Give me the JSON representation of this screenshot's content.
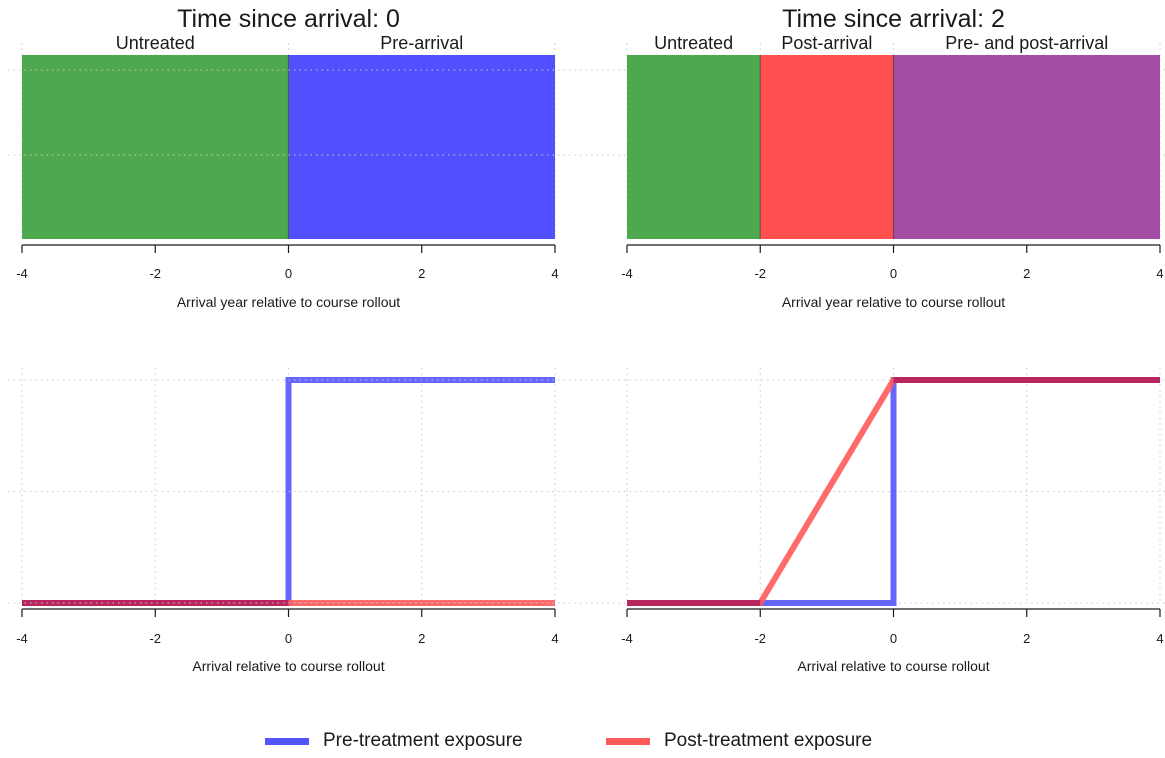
{
  "chart_data": [
    {
      "type": "area",
      "title": "Time since arrival: 0",
      "xlabel": "Arrival year relative to course rollout",
      "xlim": [
        -4,
        4
      ],
      "xticks": [
        "-4",
        "-2",
        "0",
        "2",
        "4"
      ],
      "grid": "dotted",
      "regions": [
        {
          "label": "Untreated",
          "from": -4,
          "to": 0,
          "color": "#4ea84e"
        },
        {
          "label": "Pre-arrival",
          "from": 0,
          "to": 4,
          "color": "#5050ff"
        }
      ]
    },
    {
      "type": "area",
      "title": "Time since arrival: 2",
      "xlabel": "Arrival year relative to course rollout",
      "xlim": [
        -4,
        4
      ],
      "xticks": [
        "-4",
        "-2",
        "0",
        "2",
        "4"
      ],
      "grid": "dotted",
      "regions": [
        {
          "label": "Untreated",
          "from": -4,
          "to": -2,
          "color": "#4ea84e"
        },
        {
          "label": "Post-arrival",
          "from": -2,
          "to": 0,
          "color": "#ff4f4f"
        },
        {
          "label": "Pre- and post-arrival",
          "from": 0,
          "to": 4,
          "color": "#a24ea4"
        }
      ]
    },
    {
      "type": "line",
      "xlabel": "Arrival relative to course rollout",
      "xlim": [
        -4,
        4
      ],
      "ylim": [
        0,
        1
      ],
      "xticks": [
        "-4",
        "-2",
        "0",
        "2",
        "4"
      ],
      "grid": "dotted",
      "series": [
        {
          "name": "Pre-treatment exposure",
          "color": "#5555ff",
          "x": [
            -4,
            0,
            0,
            4
          ],
          "y": [
            0,
            0,
            1,
            1
          ]
        },
        {
          "name": "Post-treatment exposure",
          "color": "#ff5a5a",
          "x": [
            -4,
            4
          ],
          "y": [
            0,
            0
          ]
        }
      ]
    },
    {
      "type": "line",
      "xlabel": "Arrival relative to course rollout",
      "xlim": [
        -4,
        4
      ],
      "ylim": [
        0,
        1
      ],
      "xticks": [
        "-4",
        "-2",
        "0",
        "2",
        "4"
      ],
      "grid": "dotted",
      "series": [
        {
          "name": "Pre-treatment exposure",
          "color": "#5555ff",
          "x": [
            -4,
            0,
            0,
            4
          ],
          "y": [
            0,
            0,
            1,
            1
          ]
        },
        {
          "name": "Post-treatment exposure",
          "color": "#ff5a5a",
          "x": [
            -4,
            -2,
            0,
            4
          ],
          "y": [
            0,
            0,
            1,
            1
          ]
        }
      ]
    }
  ],
  "legend": {
    "position": "bottom",
    "items": [
      {
        "label": "Pre-treatment exposure",
        "color": "#5555ff"
      },
      {
        "label": "Post-treatment exposure",
        "color": "#ff5a5a"
      }
    ]
  },
  "colors": {
    "overlap": "#b8265f"
  }
}
